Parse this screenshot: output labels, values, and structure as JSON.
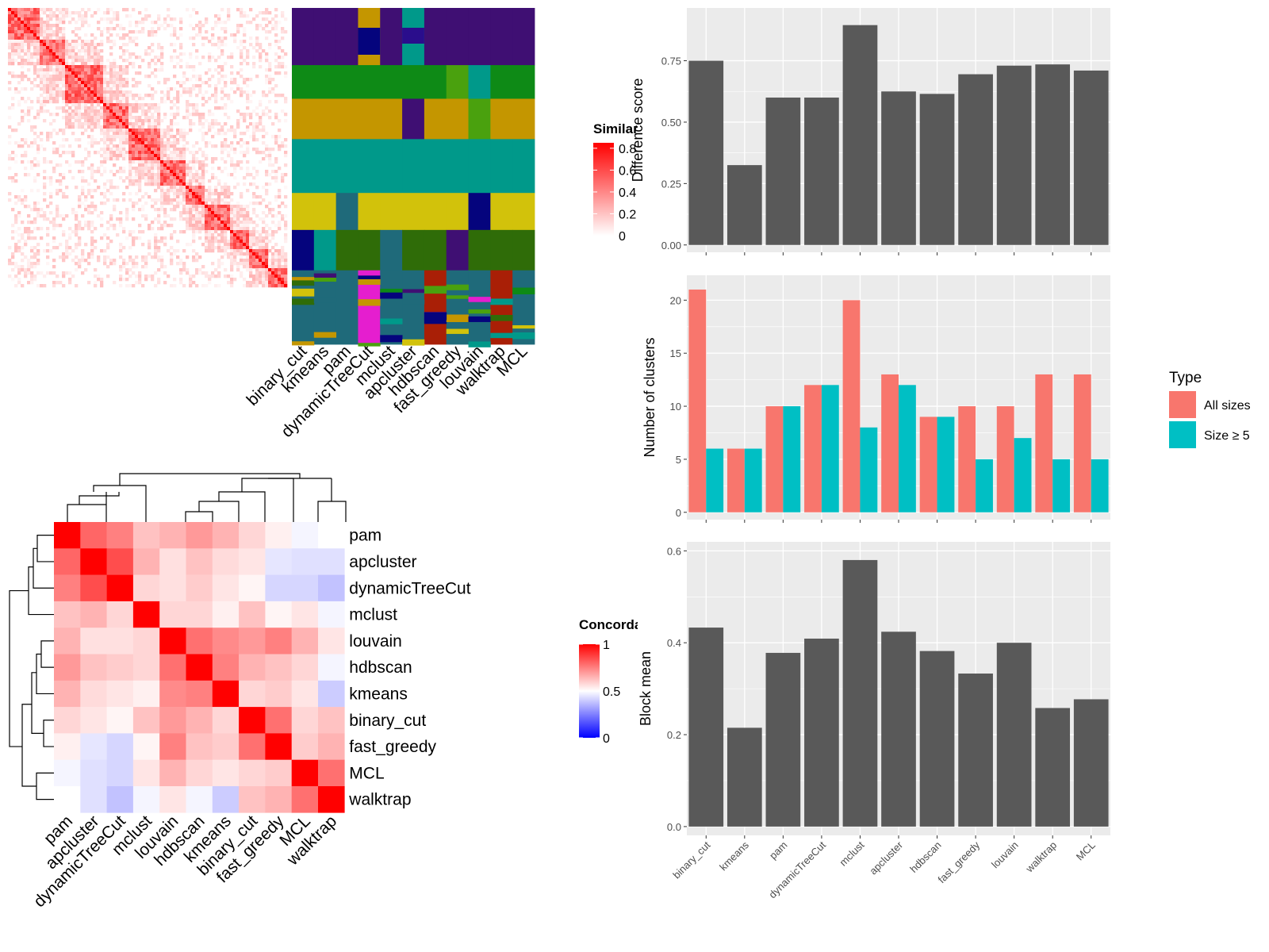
{
  "methods_bar_order": [
    "binary_cut",
    "kmeans",
    "pam",
    "dynamicTreeCut",
    "mclust",
    "apcluster",
    "hdbscan",
    "fast_greedy",
    "louvain",
    "walktrap",
    "MCL"
  ],
  "similarity_panel": {
    "legend_title": "Similarity",
    "legend_ticks": [
      "0.8",
      "0.6",
      "0.4",
      "0.2",
      "0"
    ],
    "columns": [
      "binary_cut",
      "kmeans",
      "pam",
      "dynamicTreeCut",
      "mclust",
      "apcluster",
      "hdbscan",
      "fast_greedy",
      "louvain",
      "walktrap",
      "MCL"
    ]
  },
  "concordance_panel": {
    "legend_title": "Concordance",
    "legend_ticks": [
      "1",
      "0.5",
      "0"
    ],
    "row_labels": [
      "pam",
      "apcluster",
      "dynamicTreeCut",
      "mclust",
      "louvain",
      "hdbscan",
      "kmeans",
      "binary_cut",
      "fast_greedy",
      "MCL",
      "walktrap"
    ],
    "col_labels": [
      "pam",
      "apcluster",
      "dynamicTreeCut",
      "mclust",
      "louvain",
      "hdbscan",
      "kmeans",
      "binary_cut",
      "fast_greedy",
      "MCL",
      "walktrap"
    ]
  },
  "colors": {
    "bar_dark": "#595959",
    "all_sizes": "#F8766D",
    "size_ge5": "#00BFC4",
    "panel_bg": "#EBEBEB",
    "heat_red": "#FF0000"
  },
  "chart_data": [
    {
      "type": "bar",
      "categories": [
        "binary_cut",
        "kmeans",
        "pam",
        "dynamicTreeCut",
        "mclust",
        "apcluster",
        "hdbscan",
        "fast_greedy",
        "louvain",
        "walktrap",
        "MCL"
      ],
      "values": [
        0.75,
        0.325,
        0.6,
        0.6,
        0.895,
        0.625,
        0.615,
        0.695,
        0.73,
        0.735,
        0.71
      ],
      "ylabel": "Difference score",
      "ylim": [
        0,
        0.95
      ],
      "yticks": [
        "0.00",
        "0.25",
        "0.50",
        "0.75"
      ]
    },
    {
      "type": "bar",
      "categories": [
        "binary_cut",
        "kmeans",
        "pam",
        "dynamicTreeCut",
        "mclust",
        "apcluster",
        "hdbscan",
        "fast_greedy",
        "louvain",
        "walktrap",
        "MCL"
      ],
      "series": [
        {
          "name": "All sizes",
          "values": [
            21,
            6,
            10,
            12,
            20,
            13,
            9,
            10,
            10,
            13,
            13
          ]
        },
        {
          "name": "Size ≥ 5",
          "values": [
            6,
            6,
            10,
            12,
            8,
            12,
            9,
            5,
            7,
            5,
            5
          ]
        }
      ],
      "ylabel": "Number of clusters",
      "ylim": [
        0,
        22
      ],
      "yticks": [
        "0",
        "5",
        "10",
        "15",
        "20"
      ],
      "legend_title": "Type",
      "legend_position": "right"
    },
    {
      "type": "bar",
      "categories": [
        "binary_cut",
        "kmeans",
        "pam",
        "dynamicTreeCut",
        "mclust",
        "apcluster",
        "hdbscan",
        "fast_greedy",
        "louvain",
        "walktrap",
        "MCL"
      ],
      "values": [
        0.433,
        0.215,
        0.378,
        0.409,
        0.58,
        0.424,
        0.382,
        0.333,
        0.4,
        0.258,
        0.277
      ],
      "ylabel": "Block mean",
      "ylim": [
        0,
        0.61
      ],
      "yticks": [
        "0.0",
        "0.2",
        "0.4",
        "0.6"
      ]
    },
    {
      "type": "heatmap",
      "labels": [
        "pam",
        "apcluster",
        "dynamicTreeCut",
        "mclust",
        "louvain",
        "hdbscan",
        "kmeans",
        "binary_cut",
        "fast_greedy",
        "MCL",
        "walktrap"
      ],
      "values": [
        [
          1.0,
          0.8,
          0.75,
          0.62,
          0.65,
          0.7,
          0.65,
          0.58,
          0.53,
          0.48,
          0.5
        ],
        [
          0.8,
          1.0,
          0.85,
          0.65,
          0.56,
          0.62,
          0.57,
          0.55,
          0.45,
          0.44,
          0.44
        ],
        [
          0.75,
          0.85,
          1.0,
          0.58,
          0.56,
          0.6,
          0.55,
          0.52,
          0.42,
          0.42,
          0.38
        ],
        [
          0.62,
          0.65,
          0.58,
          1.0,
          0.58,
          0.58,
          0.53,
          0.62,
          0.52,
          0.55,
          0.48
        ],
        [
          0.65,
          0.56,
          0.56,
          0.58,
          1.0,
          0.78,
          0.73,
          0.7,
          0.75,
          0.65,
          0.55
        ],
        [
          0.7,
          0.62,
          0.6,
          0.58,
          0.78,
          1.0,
          0.75,
          0.65,
          0.62,
          0.58,
          0.48
        ],
        [
          0.65,
          0.57,
          0.55,
          0.53,
          0.73,
          0.75,
          1.0,
          0.58,
          0.6,
          0.55,
          0.4
        ],
        [
          0.58,
          0.55,
          0.52,
          0.62,
          0.7,
          0.65,
          0.58,
          1.0,
          0.78,
          0.58,
          0.62
        ],
        [
          0.53,
          0.45,
          0.42,
          0.52,
          0.75,
          0.62,
          0.6,
          0.78,
          1.0,
          0.6,
          0.65
        ],
        [
          0.48,
          0.44,
          0.42,
          0.55,
          0.65,
          0.58,
          0.55,
          0.58,
          0.6,
          1.0,
          0.78
        ],
        [
          0.5,
          0.44,
          0.38,
          0.48,
          0.55,
          0.48,
          0.4,
          0.62,
          0.65,
          0.78,
          1.0
        ]
      ],
      "colorbar_range": [
        0,
        1
      ]
    }
  ]
}
